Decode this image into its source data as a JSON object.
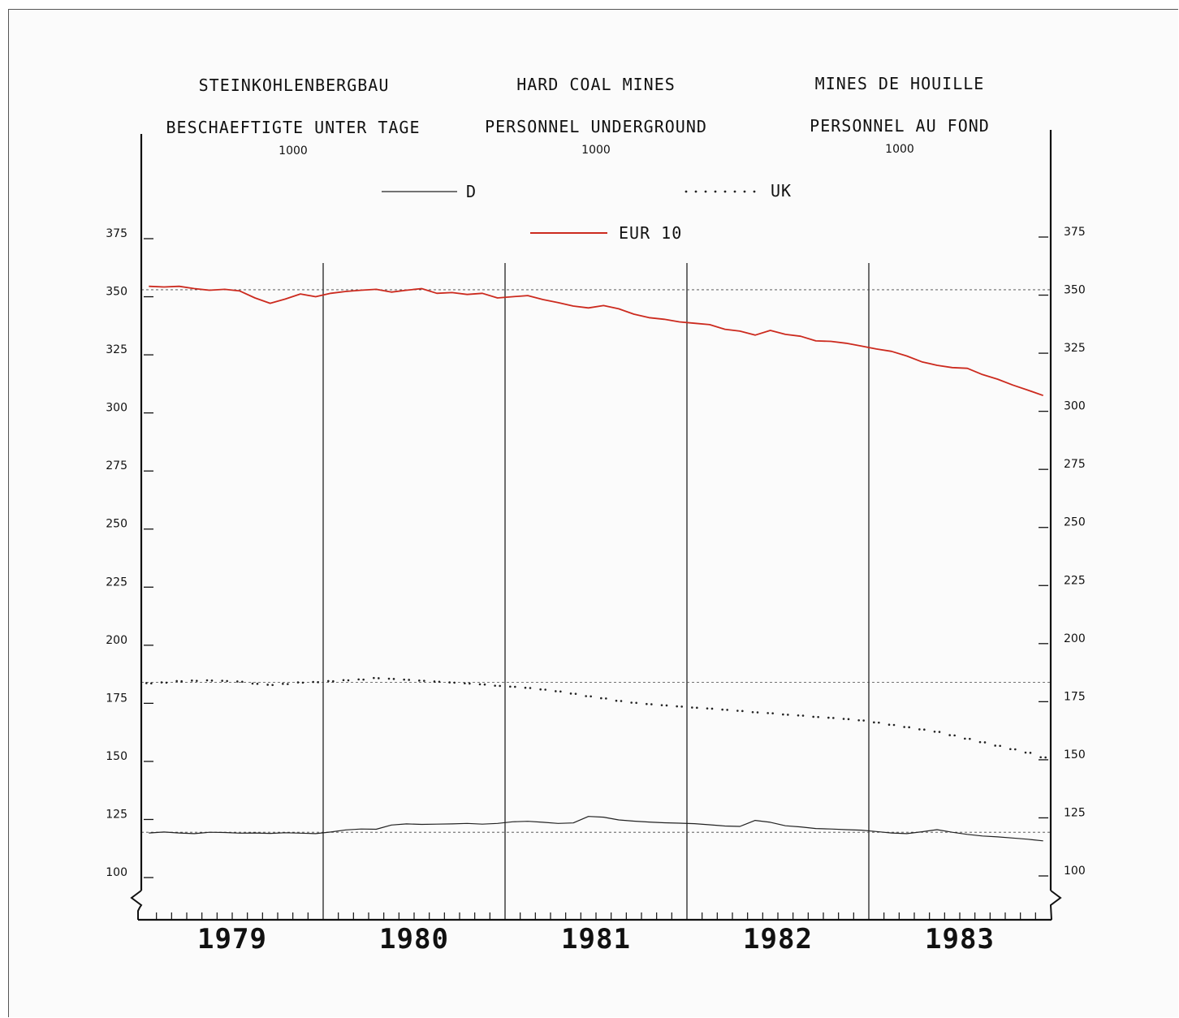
{
  "titles": {
    "de": {
      "title": "STEINKOHLENBERGBAU",
      "subtitle": "BESCHAEFTIGTE UNTER TAGE",
      "unit": "1000"
    },
    "en": {
      "title": "HARD COAL MINES",
      "subtitle": "PERSONNEL UNDERGROUND",
      "unit": "1000"
    },
    "fr": {
      "title": "MINES DE HOUILLE",
      "subtitle": "PERSONNEL AU FOND",
      "unit": "1000"
    }
  },
  "legend": {
    "d": "D",
    "uk": "UK",
    "eur": "EUR 10"
  },
  "colors": {
    "d": "#222222",
    "uk": "#222222",
    "eur": "#cc2a1e",
    "axis": "#111111"
  },
  "chart_data": {
    "type": "line",
    "x": [
      "1979-01",
      "1979-02",
      "1979-03",
      "1979-04",
      "1979-05",
      "1979-06",
      "1979-07",
      "1979-08",
      "1979-09",
      "1979-10",
      "1979-11",
      "1979-12",
      "1980-01",
      "1980-02",
      "1980-03",
      "1980-04",
      "1980-05",
      "1980-06",
      "1980-07",
      "1980-08",
      "1980-09",
      "1980-10",
      "1980-11",
      "1980-12",
      "1981-01",
      "1981-02",
      "1981-03",
      "1981-04",
      "1981-05",
      "1981-06",
      "1981-07",
      "1981-08",
      "1981-09",
      "1981-10",
      "1981-11",
      "1981-12",
      "1982-01",
      "1982-02",
      "1982-03",
      "1982-04",
      "1982-05",
      "1982-06",
      "1982-07",
      "1982-08",
      "1982-09",
      "1982-10",
      "1982-11",
      "1982-12",
      "1983-01",
      "1983-02",
      "1983-03",
      "1983-04",
      "1983-05",
      "1983-06",
      "1983-07",
      "1983-08",
      "1983-09",
      "1983-10",
      "1983-11",
      "1983-12"
    ],
    "series": [
      {
        "name": "EUR 10",
        "style": "solid-red",
        "values": [
          354.5,
          354.2,
          354.5,
          353.5,
          352.8,
          353.2,
          352.5,
          349.5,
          347.2,
          349.0,
          351.2,
          350.0,
          351.5,
          352.3,
          352.8,
          353.2,
          352.0,
          352.8,
          353.5,
          351.5,
          351.8,
          351.0,
          351.5,
          349.5,
          350.0,
          350.5,
          348.8,
          347.5,
          346.0,
          345.2,
          346.2,
          344.8,
          342.5,
          341.0,
          340.3,
          339.2,
          338.6,
          338.0,
          336.0,
          335.2,
          333.5,
          335.5,
          333.8,
          333.0,
          331.0,
          330.8,
          330.0,
          328.8,
          327.5,
          326.5,
          324.5,
          322.0,
          320.5,
          319.5,
          319.2,
          316.5,
          314.5,
          312.0,
          309.8,
          307.5
        ]
      },
      {
        "name": "UK",
        "style": "dotted",
        "values": [
          183.7,
          184.0,
          184.6,
          184.8,
          184.9,
          184.7,
          184.4,
          183.5,
          183.0,
          183.4,
          184.0,
          184.2,
          184.6,
          185.0,
          185.3,
          185.9,
          185.6,
          185.2,
          184.8,
          184.4,
          184.0,
          183.6,
          183.2,
          182.6,
          182.2,
          181.7,
          181.0,
          180.2,
          179.2,
          178.1,
          177.2,
          176.1,
          175.3,
          174.7,
          174.2,
          173.7,
          173.2,
          172.8,
          172.3,
          171.8,
          171.2,
          170.8,
          170.2,
          169.8,
          169.2,
          168.8,
          168.3,
          167.7,
          166.8,
          165.8,
          164.8,
          163.8,
          162.8,
          161.3,
          159.8,
          158.3,
          156.8,
          155.3,
          153.8,
          151.8
        ]
      },
      {
        "name": "D",
        "style": "solid-black",
        "values": [
          119.2,
          119.6,
          119.2,
          118.9,
          119.5,
          119.4,
          119.1,
          119.2,
          119.0,
          119.3,
          119.1,
          118.9,
          119.6,
          120.5,
          120.9,
          120.8,
          122.6,
          123.1,
          122.9,
          123.0,
          123.1,
          123.3,
          123.0,
          123.3,
          124.0,
          124.2,
          123.8,
          123.3,
          123.5,
          126.3,
          126.0,
          124.8,
          124.3,
          123.9,
          123.6,
          123.4,
          123.2,
          122.7,
          122.2,
          122.0,
          124.6,
          123.8,
          122.3,
          121.8,
          121.1,
          120.9,
          120.6,
          120.4,
          119.8,
          119.2,
          118.9,
          119.7,
          120.6,
          119.5,
          118.6,
          117.9,
          117.5,
          117.0,
          116.5,
          115.8
        ]
      }
    ],
    "reference_lines": [
      353.0,
      184.0,
      119.5
    ],
    "x_tick_labels": [
      "1979",
      "1980",
      "1981",
      "1982",
      "1983"
    ],
    "y_tick_labels": [
      "100",
      "125",
      "150",
      "175",
      "200",
      "225",
      "250",
      "275",
      "300",
      "325",
      "350",
      "375"
    ],
    "ylim": [
      100,
      375
    ],
    "grid": "vertical lines at year boundaries",
    "legend_placement": "top-center"
  }
}
